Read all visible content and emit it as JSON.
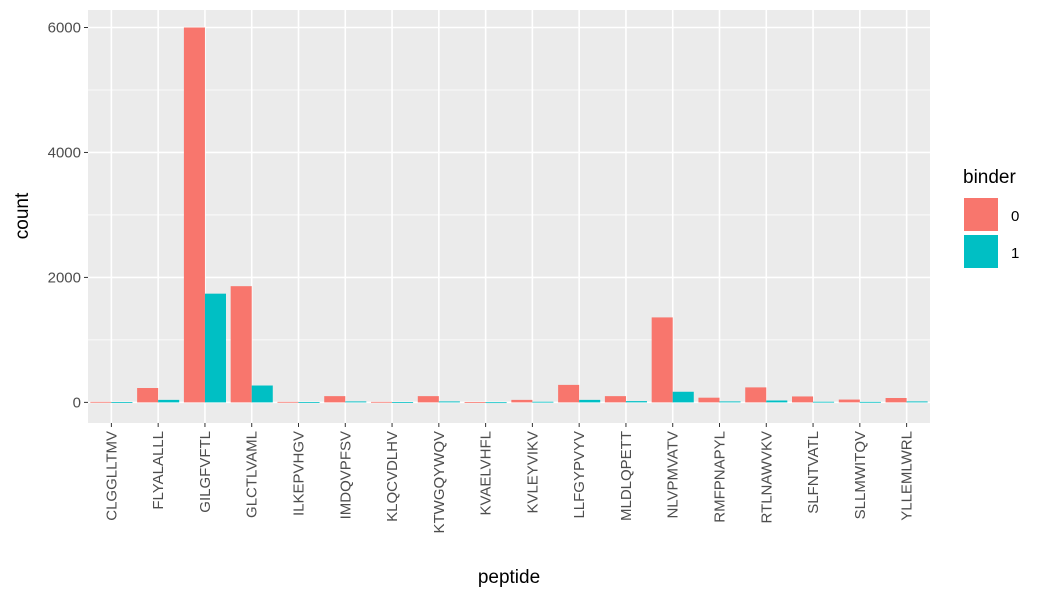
{
  "chart_data": {
    "type": "bar",
    "title": "",
    "xlabel": "peptide",
    "ylabel": "count",
    "ylim": [
      -330,
      6280
    ],
    "yticks": [
      0,
      2000,
      4000,
      6000
    ],
    "grid": true,
    "legend": {
      "title": "binder",
      "placement": "right"
    },
    "categories": [
      "CLGGLLTMV",
      "FLYALALLL",
      "GILGFVFTL",
      "GLCTLVAML",
      "ILKEPVHGV",
      "IMDQVPFSV",
      "KLQCVDLHV",
      "KTWGQYWQV",
      "KVAELVHFL",
      "KVLEYVIKV",
      "LLFGYPVYV",
      "MLDLQPETT",
      "NLVPMVATV",
      "RMFPNAPYL",
      "RTLNAWVKV",
      "SLFNTVATL",
      "SLLMWITQV",
      "YLLEMLWRL"
    ],
    "series": [
      {
        "name": "0",
        "color": "#F8766D",
        "values": [
          8,
          230,
          6000,
          1860,
          8,
          100,
          8,
          100,
          5,
          40,
          280,
          100,
          1360,
          75,
          240,
          95,
          45,
          70
        ]
      },
      {
        "name": "1",
        "color": "#00BFC4",
        "values": [
          3,
          40,
          1740,
          270,
          3,
          15,
          3,
          15,
          2,
          10,
          40,
          20,
          170,
          15,
          30,
          10,
          8,
          15
        ]
      }
    ]
  }
}
